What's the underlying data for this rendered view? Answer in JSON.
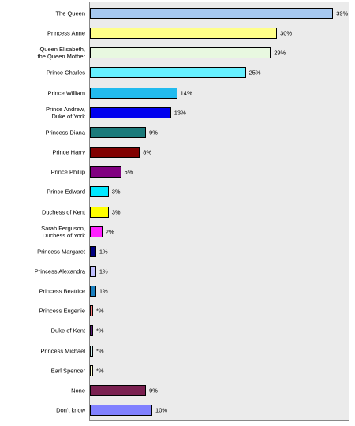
{
  "chart_data": {
    "type": "bar",
    "orientation": "horizontal",
    "categories": [
      "The Queen",
      "Princess Anne",
      "Queen Elisabeth,\nthe Queen Mother",
      "Prince Charles",
      "Prince William",
      "Prince Andrew,\nDuke of York",
      "Princess Diana",
      "Prince Harry",
      "Prince Phillip",
      "Prince Edward",
      "Duchess of Kent",
      "Sarah Ferguson,\nDuchess of York",
      "Princess Margaret",
      "Princess Alexandra",
      "Princess Beatrice",
      "Princess Eugenie",
      "Duke of Kent",
      "Princess Michael",
      "Earl Spencer",
      "None",
      "Don't know"
    ],
    "values": [
      39,
      30,
      29,
      25,
      14,
      13,
      9,
      8,
      5,
      3,
      3,
      2,
      1,
      1,
      1,
      0.5,
      0.5,
      0.5,
      0.5,
      9,
      10
    ],
    "value_labels": [
      "39%",
      "30%",
      "29%",
      "25%",
      "14%",
      "13%",
      "9%",
      "8%",
      "5%",
      "3%",
      "3%",
      "2%",
      "1%",
      "1%",
      "1%",
      "*%",
      "*%",
      "*%",
      "*%",
      "9%",
      "10%"
    ],
    "colors": [
      "#a6c8f0",
      "#ffff88",
      "#e8f8e0",
      "#66f0ff",
      "#22bbee",
      "#0000ee",
      "#1a7a7a",
      "#800000",
      "#800080",
      "#00e8ff",
      "#ffff00",
      "#ff22ff",
      "#000080",
      "#c0c0ff",
      "#1a80c0",
      "#ff8080",
      "#602080",
      "#d0f0f0",
      "#ffffd0",
      "#7a2050",
      "#8080ff"
    ],
    "xlim": [
      0,
      41.5
    ]
  }
}
